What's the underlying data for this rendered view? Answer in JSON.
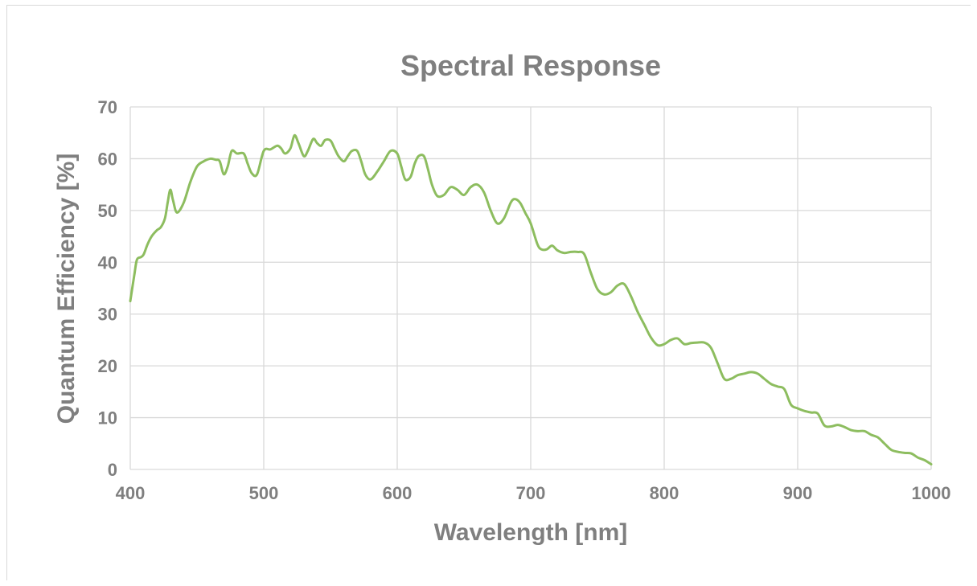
{
  "chart_data": {
    "type": "line",
    "title": "Spectral Response",
    "xlabel": "Wavelength [nm]",
    "ylabel": "Quantum Efficiency [%]",
    "xlim": [
      400,
      1000
    ],
    "ylim": [
      0,
      70
    ],
    "xticks": [
      400,
      500,
      600,
      700,
      800,
      900,
      1000
    ],
    "yticks": [
      0,
      10,
      20,
      30,
      40,
      50,
      60,
      70
    ],
    "grid": true,
    "legend": "none",
    "colors": {
      "line": "#8dbd5f",
      "text": "#7f7f7f",
      "grid": "#d9d9d9"
    },
    "series": [
      {
        "x": [
          400,
          403,
          405,
          408,
          410,
          413,
          416,
          420,
          423,
          426,
          428,
          430,
          432,
          435,
          440,
          445,
          450,
          455,
          460,
          464,
          467,
          470,
          473,
          476,
          480,
          485,
          488,
          491,
          495,
          500,
          505,
          510,
          513,
          516,
          520,
          523,
          526,
          530,
          533,
          537,
          540,
          543,
          546,
          550,
          553,
          556,
          560,
          563,
          566,
          570,
          573,
          576,
          580,
          585,
          590,
          595,
          600,
          603,
          606,
          610,
          613,
          616,
          620,
          623,
          626,
          630,
          635,
          640,
          645,
          650,
          655,
          660,
          665,
          670,
          675,
          680,
          685,
          688,
          692,
          696,
          700,
          705,
          708,
          712,
          716,
          720,
          725,
          730,
          735,
          740,
          745,
          750,
          755,
          760,
          765,
          770,
          775,
          780,
          785,
          790,
          795,
          800,
          805,
          810,
          815,
          820,
          825,
          830,
          835,
          840,
          845,
          850,
          855,
          860,
          865,
          870,
          875,
          880,
          885,
          890,
          895,
          900,
          905,
          910,
          915,
          920,
          925,
          930,
          935,
          940,
          945,
          950,
          955,
          960,
          965,
          970,
          975,
          980,
          985,
          990,
          995,
          1000
        ],
        "values": [
          32.5,
          37.5,
          40.5,
          41.0,
          41.5,
          43.5,
          45.0,
          46.2,
          46.8,
          48.5,
          51.5,
          54.0,
          52.0,
          49.6,
          51.5,
          55.5,
          58.5,
          59.5,
          60.0,
          59.8,
          59.5,
          57.0,
          58.5,
          61.5,
          61.0,
          61.0,
          59.0,
          57.2,
          57.0,
          61.5,
          61.8,
          62.5,
          62.0,
          61.0,
          62.0,
          64.5,
          63.0,
          60.5,
          61.5,
          63.8,
          63.0,
          62.5,
          63.6,
          63.5,
          62.0,
          60.5,
          59.5,
          60.5,
          61.5,
          61.5,
          59.5,
          57.0,
          56.0,
          57.5,
          59.5,
          61.5,
          61.0,
          58.5,
          56.0,
          56.5,
          59.0,
          60.5,
          60.5,
          58.0,
          55.0,
          52.8,
          53.0,
          54.5,
          54.0,
          53.0,
          54.5,
          55.0,
          53.5,
          50.0,
          47.5,
          48.5,
          51.5,
          52.2,
          51.5,
          49.5,
          47.5,
          43.5,
          42.5,
          42.5,
          43.2,
          42.3,
          41.8,
          42.0,
          42.0,
          41.6,
          38.0,
          34.8,
          33.8,
          34.2,
          35.5,
          35.8,
          33.5,
          30.5,
          28.0,
          25.5,
          24.0,
          24.2,
          25.0,
          25.3,
          24.2,
          24.4,
          24.5,
          24.5,
          23.5,
          20.5,
          17.5,
          17.5,
          18.2,
          18.5,
          18.8,
          18.5,
          17.5,
          16.5,
          16.0,
          15.5,
          12.5,
          11.8,
          11.3,
          11.0,
          10.8,
          8.5,
          8.3,
          8.6,
          8.2,
          7.6,
          7.4,
          7.4,
          6.7,
          6.2,
          5.0,
          3.8,
          3.4,
          3.2,
          3.1,
          2.3,
          1.8,
          1.0
        ]
      }
    ]
  }
}
